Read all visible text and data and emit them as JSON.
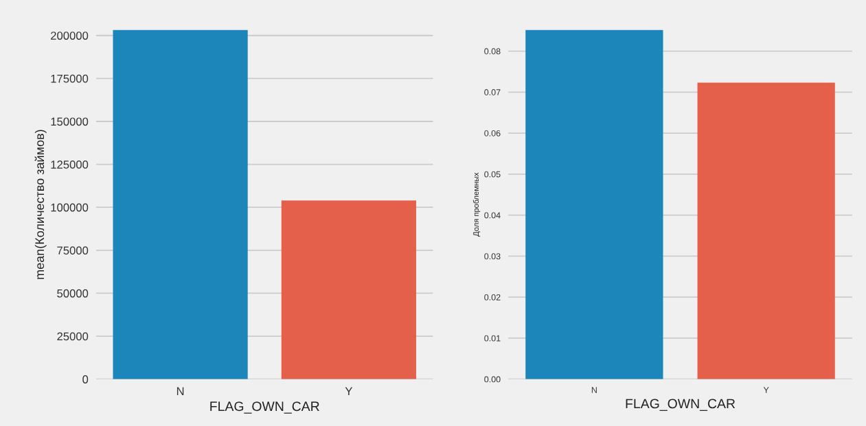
{
  "chart_data": [
    {
      "type": "bar",
      "categories": [
        "N",
        "Y"
      ],
      "values": [
        203300,
        104000
      ],
      "colors": [
        "#1c86ba",
        "#e5604a"
      ],
      "xlabel": "FLAG_OWN_CAR",
      "ylabel": "mean(Количество займов)",
      "ylim": [
        0,
        203300
      ],
      "yticks": [
        0,
        25000,
        50000,
        75000,
        100000,
        125000,
        150000,
        175000,
        200000
      ],
      "grid": "y"
    },
    {
      "type": "bar",
      "categories": [
        "N",
        "Y"
      ],
      "values": [
        0.0852,
        0.0723
      ],
      "colors": [
        "#1c86ba",
        "#e5604a"
      ],
      "xlabel": "FLAG_OWN_CAR",
      "ylabel": "Доля проблемных",
      "ylim": [
        0,
        0.0852
      ],
      "yticks": [
        {
          "value": 0,
          "label": "0.00"
        },
        0.01,
        0.02,
        0.03,
        0.04,
        0.05,
        0.06,
        0.07,
        0.08
      ],
      "grid": "y"
    }
  ]
}
